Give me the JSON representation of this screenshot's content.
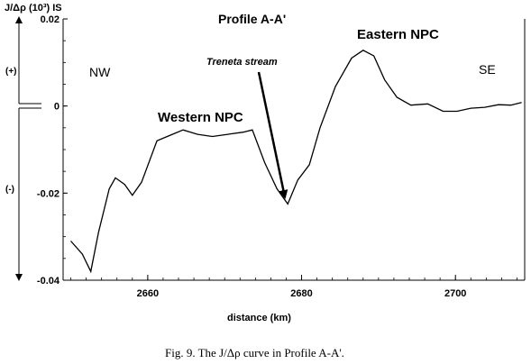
{
  "chart_data": {
    "type": "line",
    "title": "Profile A-A'",
    "ylabel": "J/Δρ (10³) IS",
    "xlabel": "distance (km)",
    "xlim": [
      2649,
      2709
    ],
    "ylim": [
      -0.04,
      0.02
    ],
    "x_ticks": [
      "2660",
      "2680",
      "2700"
    ],
    "y_ticks": [
      "0.02",
      "0",
      "-0.02",
      "-0.04"
    ],
    "grid": false,
    "series": [
      {
        "x": [
          2650,
          2651.5,
          2652.6,
          2653.6,
          2655.0,
          2655.8,
          2657.0,
          2658.0,
          2659.2,
          2661.2,
          2663.2,
          2664.6,
          2666.5,
          2668.4,
          2670.4,
          2672.4,
          2673.6,
          2675.2,
          2676.8,
          2678.2,
          2679.5,
          2681.0,
          2682.4,
          2684.4,
          2686.5,
          2688.0,
          2689.4,
          2690.8,
          2692.4,
          2694.2,
          2696.4,
          2698.4,
          2700.2,
          2702.0,
          2703.8,
          2705.6,
          2707.2,
          2708.6
        ],
        "y": [
          -0.031,
          -0.034,
          -0.038,
          -0.029,
          -0.019,
          -0.0165,
          -0.018,
          -0.0205,
          -0.0175,
          -0.008,
          -0.0065,
          -0.0055,
          -0.0065,
          -0.007,
          -0.0065,
          -0.006,
          -0.0055,
          -0.013,
          -0.019,
          -0.0225,
          -0.017,
          -0.0135,
          -0.005,
          0.0045,
          0.011,
          0.0128,
          0.0115,
          0.006,
          0.002,
          0.0002,
          0.0005,
          -0.0012,
          -0.0012,
          -0.0005,
          -0.0003,
          0.0003,
          0.0002,
          0.0008
        ]
      }
    ],
    "annotations": {
      "western": "Western NPC",
      "eastern": "Eastern NPC",
      "stream": "Treneta stream",
      "nw": "NW",
      "se": "SE",
      "plus": "(+)",
      "minus": "(-)"
    }
  },
  "caption": "Fig. 9. The J/Δρ curve in Profile A-A'."
}
